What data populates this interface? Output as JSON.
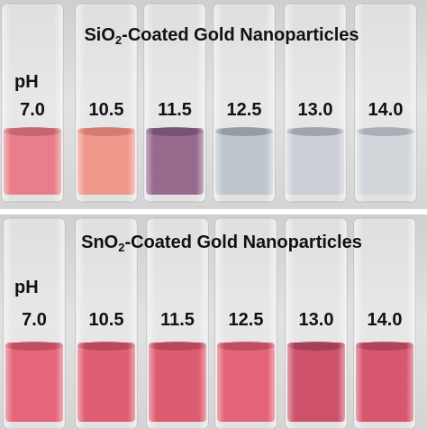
{
  "panels": [
    {
      "title": {
        "prefix": "SiO",
        "subscript": "2",
        "suffix": "-Coated Gold Nanoparticles"
      },
      "ph_label": "pH",
      "samples": [
        "7.0",
        "10.5",
        "11.5",
        "12.5",
        "13.0",
        "14.0"
      ]
    },
    {
      "title": {
        "prefix": "SnO",
        "subscript": "2",
        "suffix": "-Coated Gold Nanoparticles"
      },
      "ph_label": "pH",
      "samples": [
        "7.0",
        "10.5",
        "11.5",
        "12.5",
        "13.0",
        "14.0"
      ]
    }
  ]
}
